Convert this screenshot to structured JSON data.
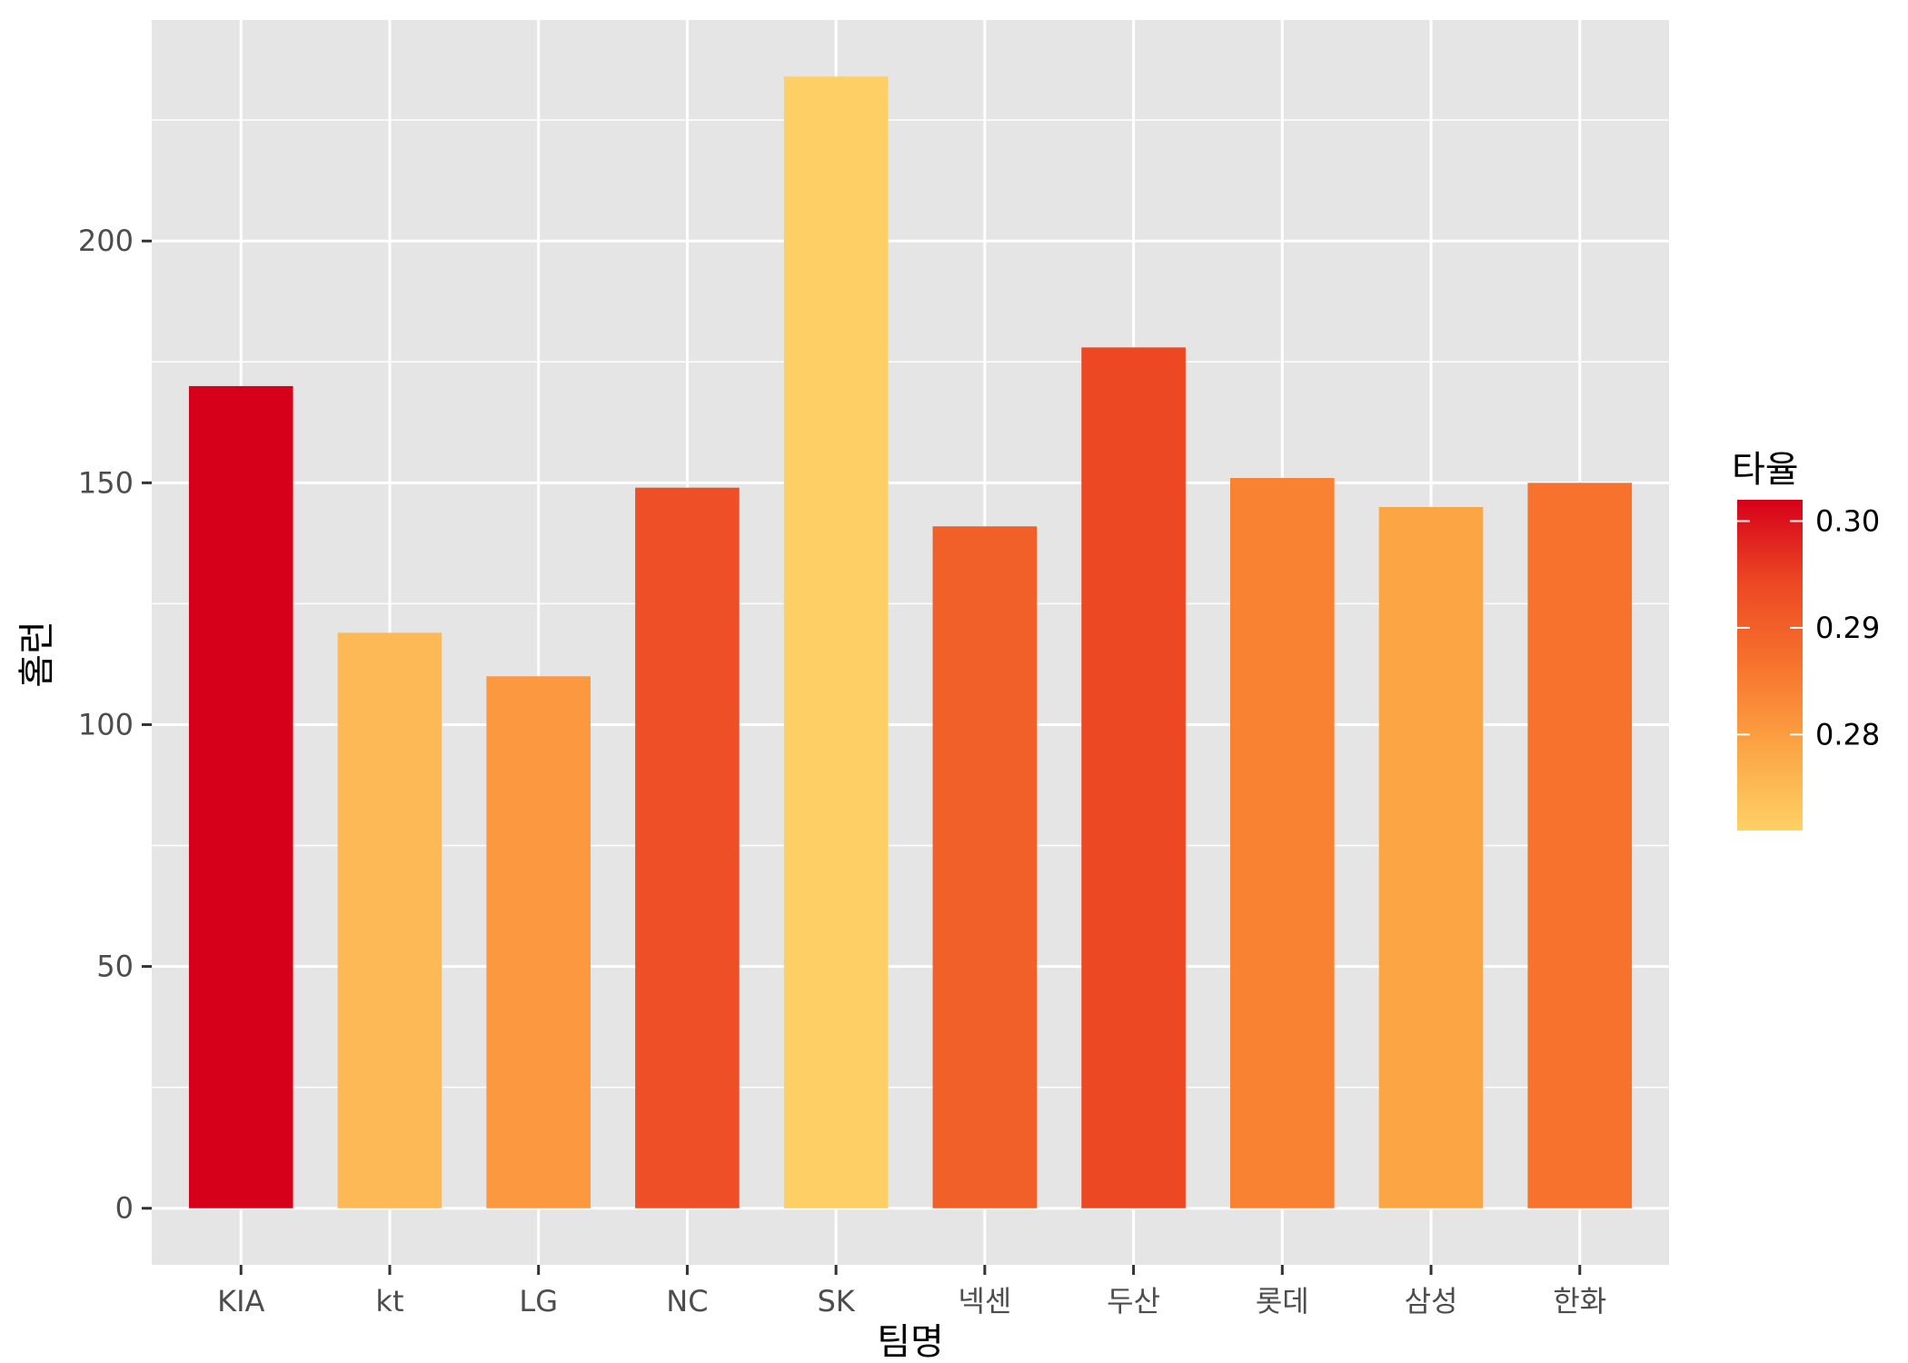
{
  "chart_data": {
    "type": "bar",
    "xlabel": "팀명",
    "ylabel": "홈런",
    "categories": [
      "KIA",
      "kt",
      "LG",
      "NC",
      "SK",
      "넥센",
      "두산",
      "롯데",
      "삼성",
      "한화"
    ],
    "values": [
      170,
      119,
      110,
      149,
      234,
      141,
      178,
      151,
      145,
      150
    ],
    "fill_values": [
      0.302,
      0.276,
      0.282,
      0.293,
      0.271,
      0.29,
      0.294,
      0.287,
      0.28,
      0.288
    ],
    "bar_colors": [
      "#D7001A",
      "#FDB955",
      "#FC9940",
      "#EE4F26",
      "#FDCF64",
      "#F16028",
      "#EC4824",
      "#F98232",
      "#FCA545",
      "#F7732D"
    ],
    "ylim": [
      -11.7,
      245.7
    ],
    "yticks": [
      0,
      50,
      100,
      150,
      200
    ],
    "ytick_labels": [
      "0",
      "50",
      "100",
      "150",
      "200"
    ],
    "grid": true,
    "legend": {
      "title": "타율",
      "position": "right",
      "ticks": [
        0.28,
        0.29,
        0.3
      ],
      "tick_labels": [
        "0.28",
        "0.29",
        "0.30"
      ],
      "range": [
        0.271,
        0.302
      ],
      "colors": [
        "#FED165",
        "#FCA545",
        "#F7732D",
        "#EC4824",
        "#D7001A"
      ]
    },
    "colors": {
      "panel_background": "#E5E5E5",
      "grid_line": "#FFFFFF",
      "tick_mark": "#333333",
      "tick_text": "#4D4D4D"
    }
  }
}
